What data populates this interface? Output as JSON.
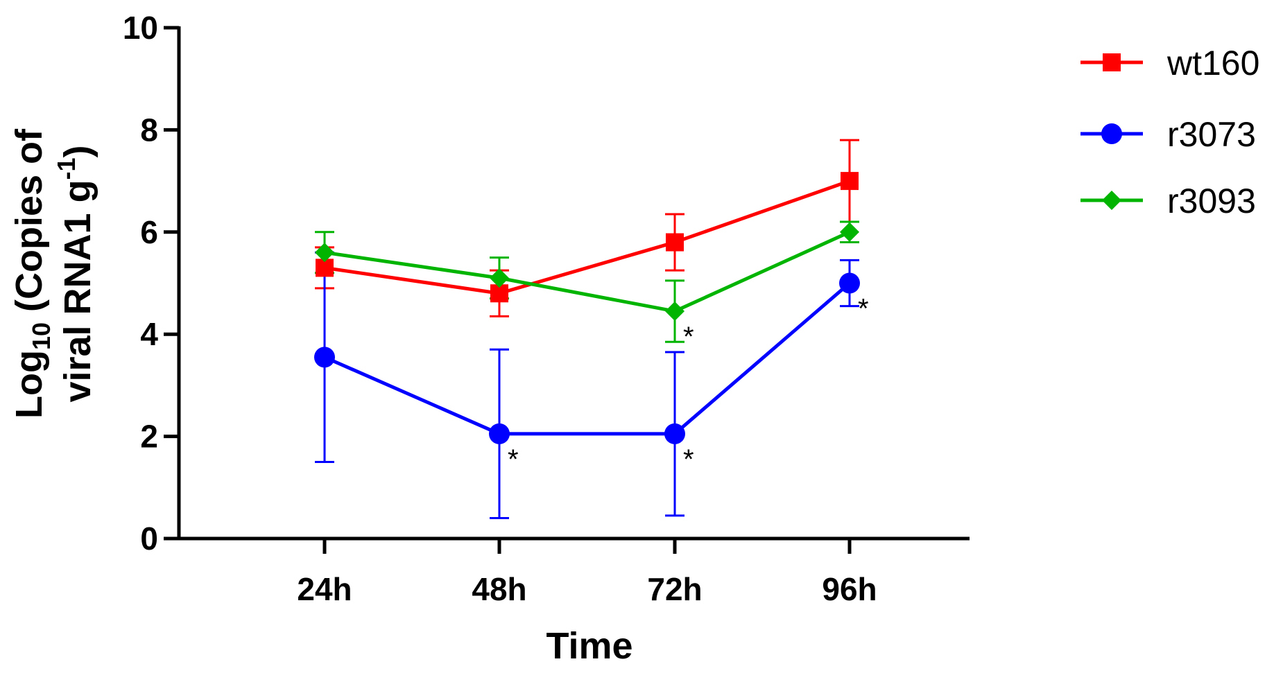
{
  "chart_data": {
    "type": "line",
    "title": "",
    "xlabel": "Time",
    "ylabel_parts": {
      "pre": "Log",
      "sub": "10",
      "mid": " (Copies of",
      "line2": "viral RNA1 g",
      "sup": "-1",
      "post": ")"
    },
    "categories": [
      "24h",
      "48h",
      "72h",
      "96h"
    ],
    "ylim": [
      0,
      10
    ],
    "yticks": [
      0,
      2,
      4,
      6,
      8,
      10
    ],
    "series": [
      {
        "name": "wt160",
        "color": "#ff0000",
        "marker": "square",
        "values": [
          5.3,
          4.8,
          5.8,
          7.0
        ],
        "err": [
          0.4,
          0.45,
          0.55,
          0.8
        ]
      },
      {
        "name": "r3073",
        "color": "#0000ff",
        "marker": "circle",
        "values": [
          3.55,
          2.05,
          2.05,
          5.0
        ],
        "err": [
          2.05,
          1.65,
          1.6,
          0.45
        ]
      },
      {
        "name": "r3093",
        "color": "#00b400",
        "marker": "diamond",
        "values": [
          5.6,
          5.1,
          4.45,
          6.0
        ],
        "err": [
          0.4,
          0.4,
          0.6,
          0.2
        ]
      }
    ],
    "annotations": [
      {
        "text": "*",
        "x": "48h",
        "y": 2.05
      },
      {
        "text": "*",
        "x": "72h",
        "y": 2.05
      },
      {
        "text": "*",
        "x": "72h",
        "y": 4.45
      },
      {
        "text": "*",
        "x": "96h",
        "y": 5.0
      }
    ],
    "legend_position": "top-right"
  }
}
